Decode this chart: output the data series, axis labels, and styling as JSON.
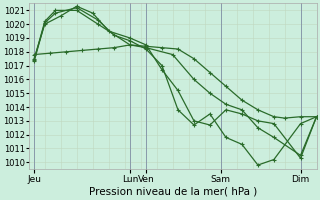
{
  "xlabel": "Pression niveau de la mer( hPa )",
  "ylim": [
    1009.5,
    1021.5
  ],
  "xlim": [
    0,
    108
  ],
  "yticks": [
    1010,
    1011,
    1012,
    1013,
    1014,
    1015,
    1016,
    1017,
    1018,
    1019,
    1020,
    1021
  ],
  "xtick_positions": [
    2,
    38,
    44,
    72,
    102
  ],
  "xtick_labels": [
    "Jeu",
    "Lun",
    "Ven",
    "Sam",
    "Dim"
  ],
  "bg_color": "#cceedd",
  "grid_minor_color": "#c0d8c0",
  "grid_major_color": "#b0c8b8",
  "line_color": "#2a6b2a",
  "markersize": 2.8,
  "linewidth": 0.9,
  "series": [
    {
      "x": [
        2,
        8,
        14,
        20,
        26,
        32,
        38,
        44,
        50,
        56,
        62,
        68,
        74,
        80,
        86,
        92,
        96,
        102,
        108
      ],
      "y": [
        1017.8,
        1017.9,
        1018.0,
        1018.1,
        1018.2,
        1018.3,
        1018.5,
        1018.4,
        1018.3,
        1018.2,
        1017.5,
        1016.5,
        1015.5,
        1014.5,
        1013.8,
        1013.3,
        1013.2,
        1013.3,
        1013.3
      ]
    },
    {
      "x": [
        2,
        6,
        12,
        18,
        24,
        30,
        38,
        44,
        50,
        56,
        62,
        68,
        74,
        80,
        86,
        92,
        102,
        108
      ],
      "y": [
        1017.5,
        1020.0,
        1020.6,
        1021.3,
        1020.8,
        1019.5,
        1019.0,
        1018.5,
        1016.7,
        1015.2,
        1013.0,
        1012.7,
        1013.8,
        1013.5,
        1013.0,
        1012.8,
        1010.3,
        1013.3
      ]
    },
    {
      "x": [
        2,
        6,
        10,
        18,
        26,
        32,
        38,
        44,
        50,
        56,
        62,
        68,
        74,
        80,
        86,
        92,
        102,
        108
      ],
      "y": [
        1017.3,
        1020.1,
        1020.8,
        1021.2,
        1020.3,
        1019.2,
        1018.8,
        1018.2,
        1017.0,
        1013.8,
        1012.7,
        1013.5,
        1011.8,
        1011.3,
        1009.8,
        1010.2,
        1012.8,
        1013.3
      ]
    },
    {
      "x": [
        2,
        6,
        10,
        18,
        26,
        38,
        44,
        54,
        62,
        68,
        74,
        80,
        86,
        92,
        102,
        108
      ],
      "y": [
        1017.4,
        1020.2,
        1021.0,
        1021.0,
        1020.0,
        1018.5,
        1018.3,
        1017.8,
        1016.0,
        1015.0,
        1014.2,
        1013.8,
        1012.5,
        1011.8,
        1010.5,
        1013.3
      ]
    }
  ]
}
